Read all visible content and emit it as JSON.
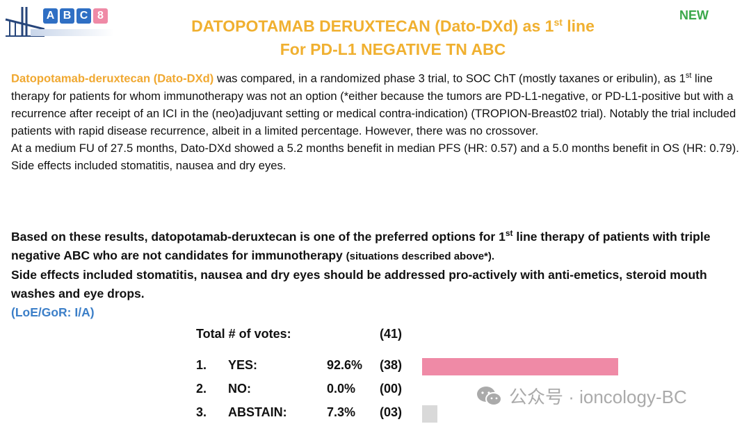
{
  "logo": {
    "letters": [
      "A",
      "B",
      "C",
      "8"
    ],
    "text": "ABC8"
  },
  "header": {
    "title_line1_pre": "DATOPOTAMAB DERUXTECAN (Dato-DXd) as 1",
    "title_line1_sup": "st",
    "title_line1_post": " line",
    "title_line2": "For PD-L1 NEGATIVE TN ABC",
    "badge": "NEW"
  },
  "body": {
    "drug": "Datopotamab-deruxtecan (Dato-DXd)",
    "p1a": " was compared, in a randomized phase 3 trial, to SOC ChT (mostly taxanes or eribulin), as 1",
    "sup": "st",
    "p1b": " line therapy for patients for whom immunotherapy was not an option (*either because the tumors are PD-L1-negative, or PD-L1-positive but with a recurrence after receipt of an ICI in the (neo)adjuvant setting or medical contra-indication) (TROPION-Breast02 trial). Notably the trial included patients with rapid disease recurrence, albeit in a limited percentage. However, there was no crossover.",
    "p2": "At a medium FU of 27.5 months, Dato-DXd showed a 5.2 months benefit in median PFS (HR: 0.57) and a 5.0 months benefit in OS (HR: 0.79). Side effects included stomatitis, nausea and dry eyes."
  },
  "recommendation": {
    "r1a": "Based on these results, datopotamab-deruxtecan is one of the preferred options for 1",
    "sup": "st",
    "r1b": " line therapy of patients with triple negative ABC who are not candidates for immunotherapy ",
    "r1small": "(situations described above*).",
    "r2": "Side effects included stomatitis, nausea and dry eyes should be addressed pro-actively with anti-emetics, steroid mouth washes and eye drops.",
    "loe": "(LoE/GoR: I/A)"
  },
  "votes": {
    "total_label": "Total # of votes:",
    "total": "(41)",
    "options": [
      {
        "num": "1.",
        "label": "YES:",
        "pct": "92.6%",
        "count": "(38)",
        "value": 92.6,
        "color": "#ef8aa6"
      },
      {
        "num": "2.",
        "label": "NO:",
        "pct": "0.0%",
        "count": "(00)",
        "value": 0.0,
        "color": "#d9d9d9"
      },
      {
        "num": "3.",
        "label": "ABSTAIN:",
        "pct": "7.3%",
        "count": "(03)",
        "value": 7.3,
        "color": "#d9d9d9"
      }
    ]
  },
  "watermark": {
    "text": "公众号 · ioncology-BC",
    "icon": "wechat-icon"
  }
}
